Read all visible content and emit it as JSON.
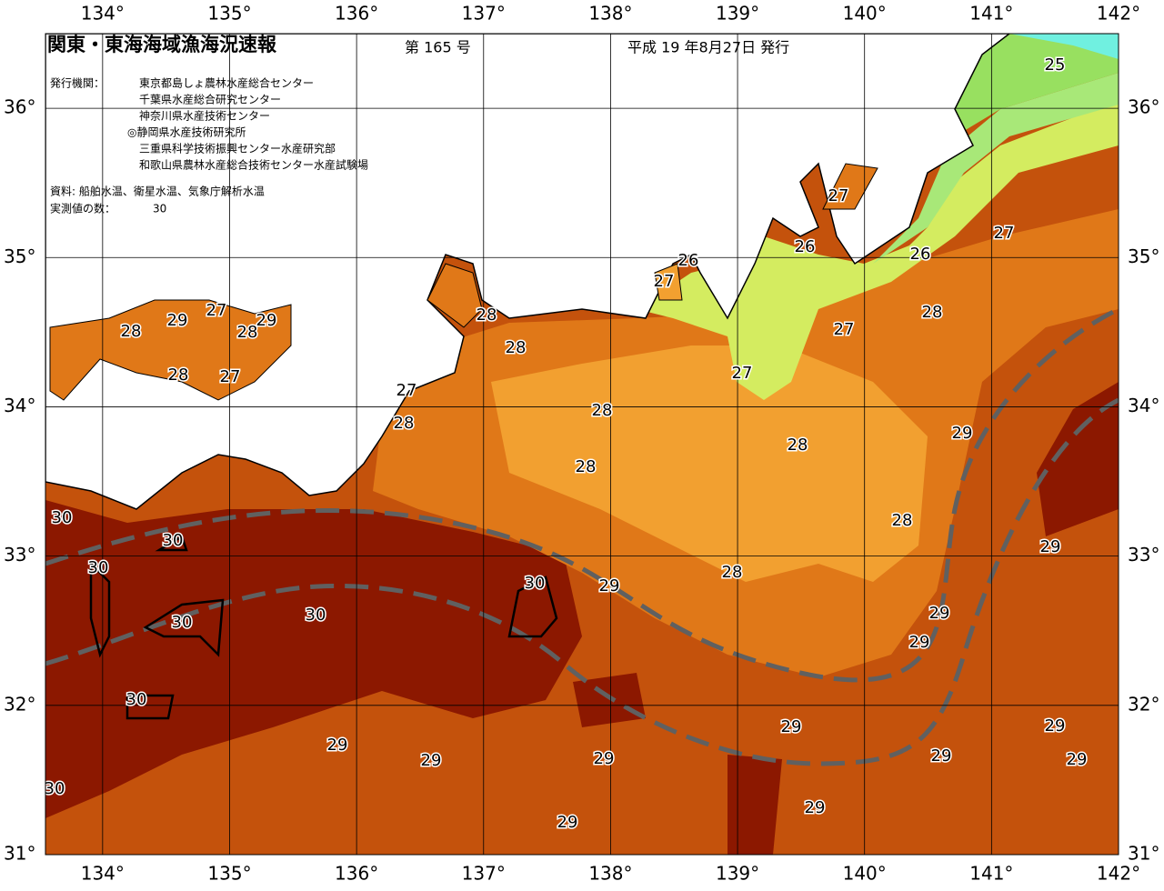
{
  "header": {
    "title": "関東・東海海域漁海況速報",
    "issue": "第 165 号",
    "date": "平成 19 年8月27日 発行",
    "publisher_label": "発行機関：",
    "publishers": [
      "東京都島しょ農林水産総合センター",
      "千葉県水産総合研究センター",
      "神奈川県水産技術センター",
      "◎静岡県水産技術研究所",
      "三重県科学技術振興センター水産研究部",
      "和歌山県農林水産総合技術センター水産試験場"
    ],
    "source": "資料: 船舶水温、衛星水温、気象庁解析水温",
    "count_label": "実測値の数：",
    "count": 30
  },
  "map": {
    "lon_range": [
      133.55,
      142
    ],
    "lat_range": [
      31,
      36.5
    ],
    "lon_ticks": [
      {
        "value": 134,
        "label": "134°"
      },
      {
        "value": 135,
        "label": "135°"
      },
      {
        "value": 136,
        "label": "136°"
      },
      {
        "value": 137,
        "label": "137°"
      },
      {
        "value": 138,
        "label": "138°"
      },
      {
        "value": 139,
        "label": "139°"
      },
      {
        "value": 140,
        "label": "140°"
      },
      {
        "value": 141,
        "label": "141°"
      },
      {
        "value": 142,
        "label": "142°"
      }
    ],
    "lat_ticks": [
      {
        "value": 31,
        "label": "31°"
      },
      {
        "value": 32,
        "label": "32°"
      },
      {
        "value": 33,
        "label": "33°"
      },
      {
        "value": 34,
        "label": "34°"
      },
      {
        "value": 35,
        "label": "35°"
      },
      {
        "value": 36,
        "label": "36°"
      }
    ],
    "contour_labels": [
      30,
      30,
      30,
      30,
      30,
      30,
      30,
      30,
      29,
      29,
      28,
      28,
      27,
      28,
      27,
      28,
      28,
      27,
      28,
      27,
      26,
      27,
      26,
      25,
      27,
      26,
      28,
      27,
      27,
      28,
      28,
      28,
      29,
      28,
      29,
      28,
      29,
      29,
      29,
      29,
      29,
      29,
      29,
      29,
      29,
      29,
      29,
      29
    ]
  }
}
